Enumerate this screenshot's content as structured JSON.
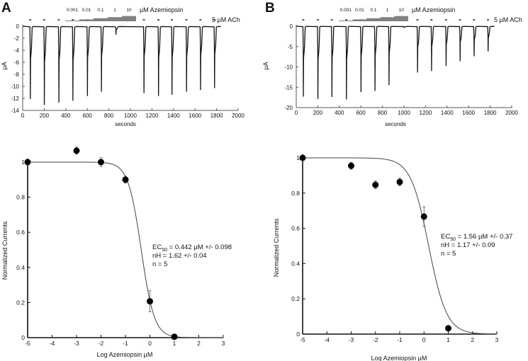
{
  "chart_data": [
    {
      "id": "A-trace",
      "panel": "A",
      "type": "line",
      "title": "",
      "xlabel": "seconds",
      "ylabel": "µA",
      "xlim": [
        0,
        2000
      ],
      "ylim": [
        -14,
        0
      ],
      "xticks": [
        0,
        200,
        400,
        600,
        800,
        1000,
        1200,
        1400,
        1600,
        1800,
        2000
      ],
      "yticks": [
        0,
        -2,
        -4,
        -6,
        -8,
        -10,
        -12,
        -14
      ],
      "annotations": {
        "agonist": "5 µM ACh",
        "toxin": "µM Azemiopsin",
        "toxin_concentrations": [
          "0.001",
          "0.01",
          "0.1",
          "1",
          "10"
        ]
      },
      "pulses": [
        {
          "t": 70,
          "peak": -12.1
        },
        {
          "t": 200,
          "peak": -13.1
        },
        {
          "t": 335,
          "peak": -12.7
        },
        {
          "t": 465,
          "peak": -12.4
        },
        {
          "t": 600,
          "peak": -11.6
        },
        {
          "t": 730,
          "peak": -10.9
        },
        {
          "t": 865,
          "peak": -1.4
        },
        {
          "t": 1125,
          "peak": -11.1
        },
        {
          "t": 1260,
          "peak": -11.6
        },
        {
          "t": 1385,
          "peak": -11.4
        },
        {
          "t": 1520,
          "peak": -10.9
        },
        {
          "t": 1650,
          "peak": -10.6
        },
        {
          "t": 1780,
          "peak": -10.3
        }
      ],
      "trace_end": 1840
    },
    {
      "id": "B-trace",
      "panel": "B",
      "type": "line",
      "title": "",
      "xlabel": "seconds",
      "ylabel": "µA",
      "xlim": [
        0,
        2000
      ],
      "ylim": [
        -20,
        0
      ],
      "xticks": [
        0,
        200,
        400,
        600,
        800,
        1000,
        1200,
        1400,
        1600,
        1800,
        2000
      ],
      "yticks": [
        0,
        -5,
        -10,
        -15,
        -20
      ],
      "annotations": {
        "agonist": "5 µM ACh",
        "toxin": "µM Azemiopsin",
        "toxin_concentrations": [
          "0.001",
          "0.01",
          "0.1",
          "1",
          "10"
        ]
      },
      "pulses": [
        {
          "t": 65,
          "peak": -17.3
        },
        {
          "t": 200,
          "peak": -17.9
        },
        {
          "t": 330,
          "peak": -17.4
        },
        {
          "t": 465,
          "peak": -18.0
        },
        {
          "t": 600,
          "peak": -16.2
        },
        {
          "t": 730,
          "peak": -15.9
        },
        {
          "t": 860,
          "peak": -14.5
        },
        {
          "t": 1000,
          "peak": -0.4
        },
        {
          "t": 1125,
          "peak": -11.4
        },
        {
          "t": 1255,
          "peak": -11.0
        },
        {
          "t": 1390,
          "peak": -9.8
        },
        {
          "t": 1520,
          "peak": -8.6
        },
        {
          "t": 1650,
          "peak": -7.4
        },
        {
          "t": 1780,
          "peak": -6.2
        }
      ],
      "trace_end": 1840
    },
    {
      "id": "A-dose",
      "panel": "A",
      "type": "scatter",
      "title": "",
      "xlabel": "Log Azemiopsin µM",
      "ylabel": "Normalized Currents",
      "xlim": [
        -5,
        3
      ],
      "ylim": [
        0,
        1
      ],
      "xticks": [
        -5,
        -4,
        -3,
        -2,
        -1,
        0,
        1,
        2,
        3
      ],
      "yticks": [
        0,
        0.2,
        0.4,
        0.6,
        0.8,
        1
      ],
      "points": [
        {
          "x": -5,
          "y": 1.0,
          "err": 0
        },
        {
          "x": -3,
          "y": 1.065,
          "err": 0.02
        },
        {
          "x": -2,
          "y": 1.0,
          "err": 0.025
        },
        {
          "x": -1,
          "y": 0.9,
          "err": 0.02
        },
        {
          "x": 0,
          "y": 0.207,
          "err": 0.06
        },
        {
          "x": 1,
          "y": 0.005,
          "err": 0
        }
      ],
      "fit": {
        "ec50_log": -0.354,
        "nH": 1.62,
        "top": 1.0,
        "bottom": 0
      },
      "annotation": {
        "ec50_prefix": "EC",
        "ec50_sub": "50",
        "ec50_rest": " = 0.442 µM +/- 0.098",
        "nh": "nH = 1.62 +/- 0.04",
        "n": "n = 5"
      }
    },
    {
      "id": "B-dose",
      "panel": "B",
      "type": "scatter",
      "title": "",
      "xlabel": "Log Azemiopsin µM",
      "ylabel": "Normalized Currents",
      "xlim": [
        -5,
        3
      ],
      "ylim": [
        0,
        1
      ],
      "xticks": [
        -5,
        -4,
        -3,
        -2,
        -1,
        0,
        1,
        2,
        3
      ],
      "yticks": [
        0,
        0.2,
        0.4,
        0.6,
        0.8,
        1
      ],
      "points": [
        {
          "x": -5,
          "y": 1.0,
          "err": 0
        },
        {
          "x": -3,
          "y": 0.955,
          "err": 0.02
        },
        {
          "x": -2,
          "y": 0.847,
          "err": 0.022
        },
        {
          "x": -1,
          "y": 0.863,
          "err": 0.022
        },
        {
          "x": 0,
          "y": 0.667,
          "err": 0.055
        },
        {
          "x": 1,
          "y": 0.033,
          "err": 0
        }
      ],
      "fit": {
        "ec50_log": 0.193,
        "nH": 1.17,
        "top": 1.0,
        "bottom": 0
      },
      "annotation": {
        "ec50_prefix": "EC",
        "ec50_sub": "50",
        "ec50_rest": " = 1.56 µM +/- 0.37",
        "nh": "nH = 1.17 +/- 0.09",
        "n": "n = 5"
      }
    }
  ],
  "panels": {
    "A": "A",
    "B": "B"
  }
}
